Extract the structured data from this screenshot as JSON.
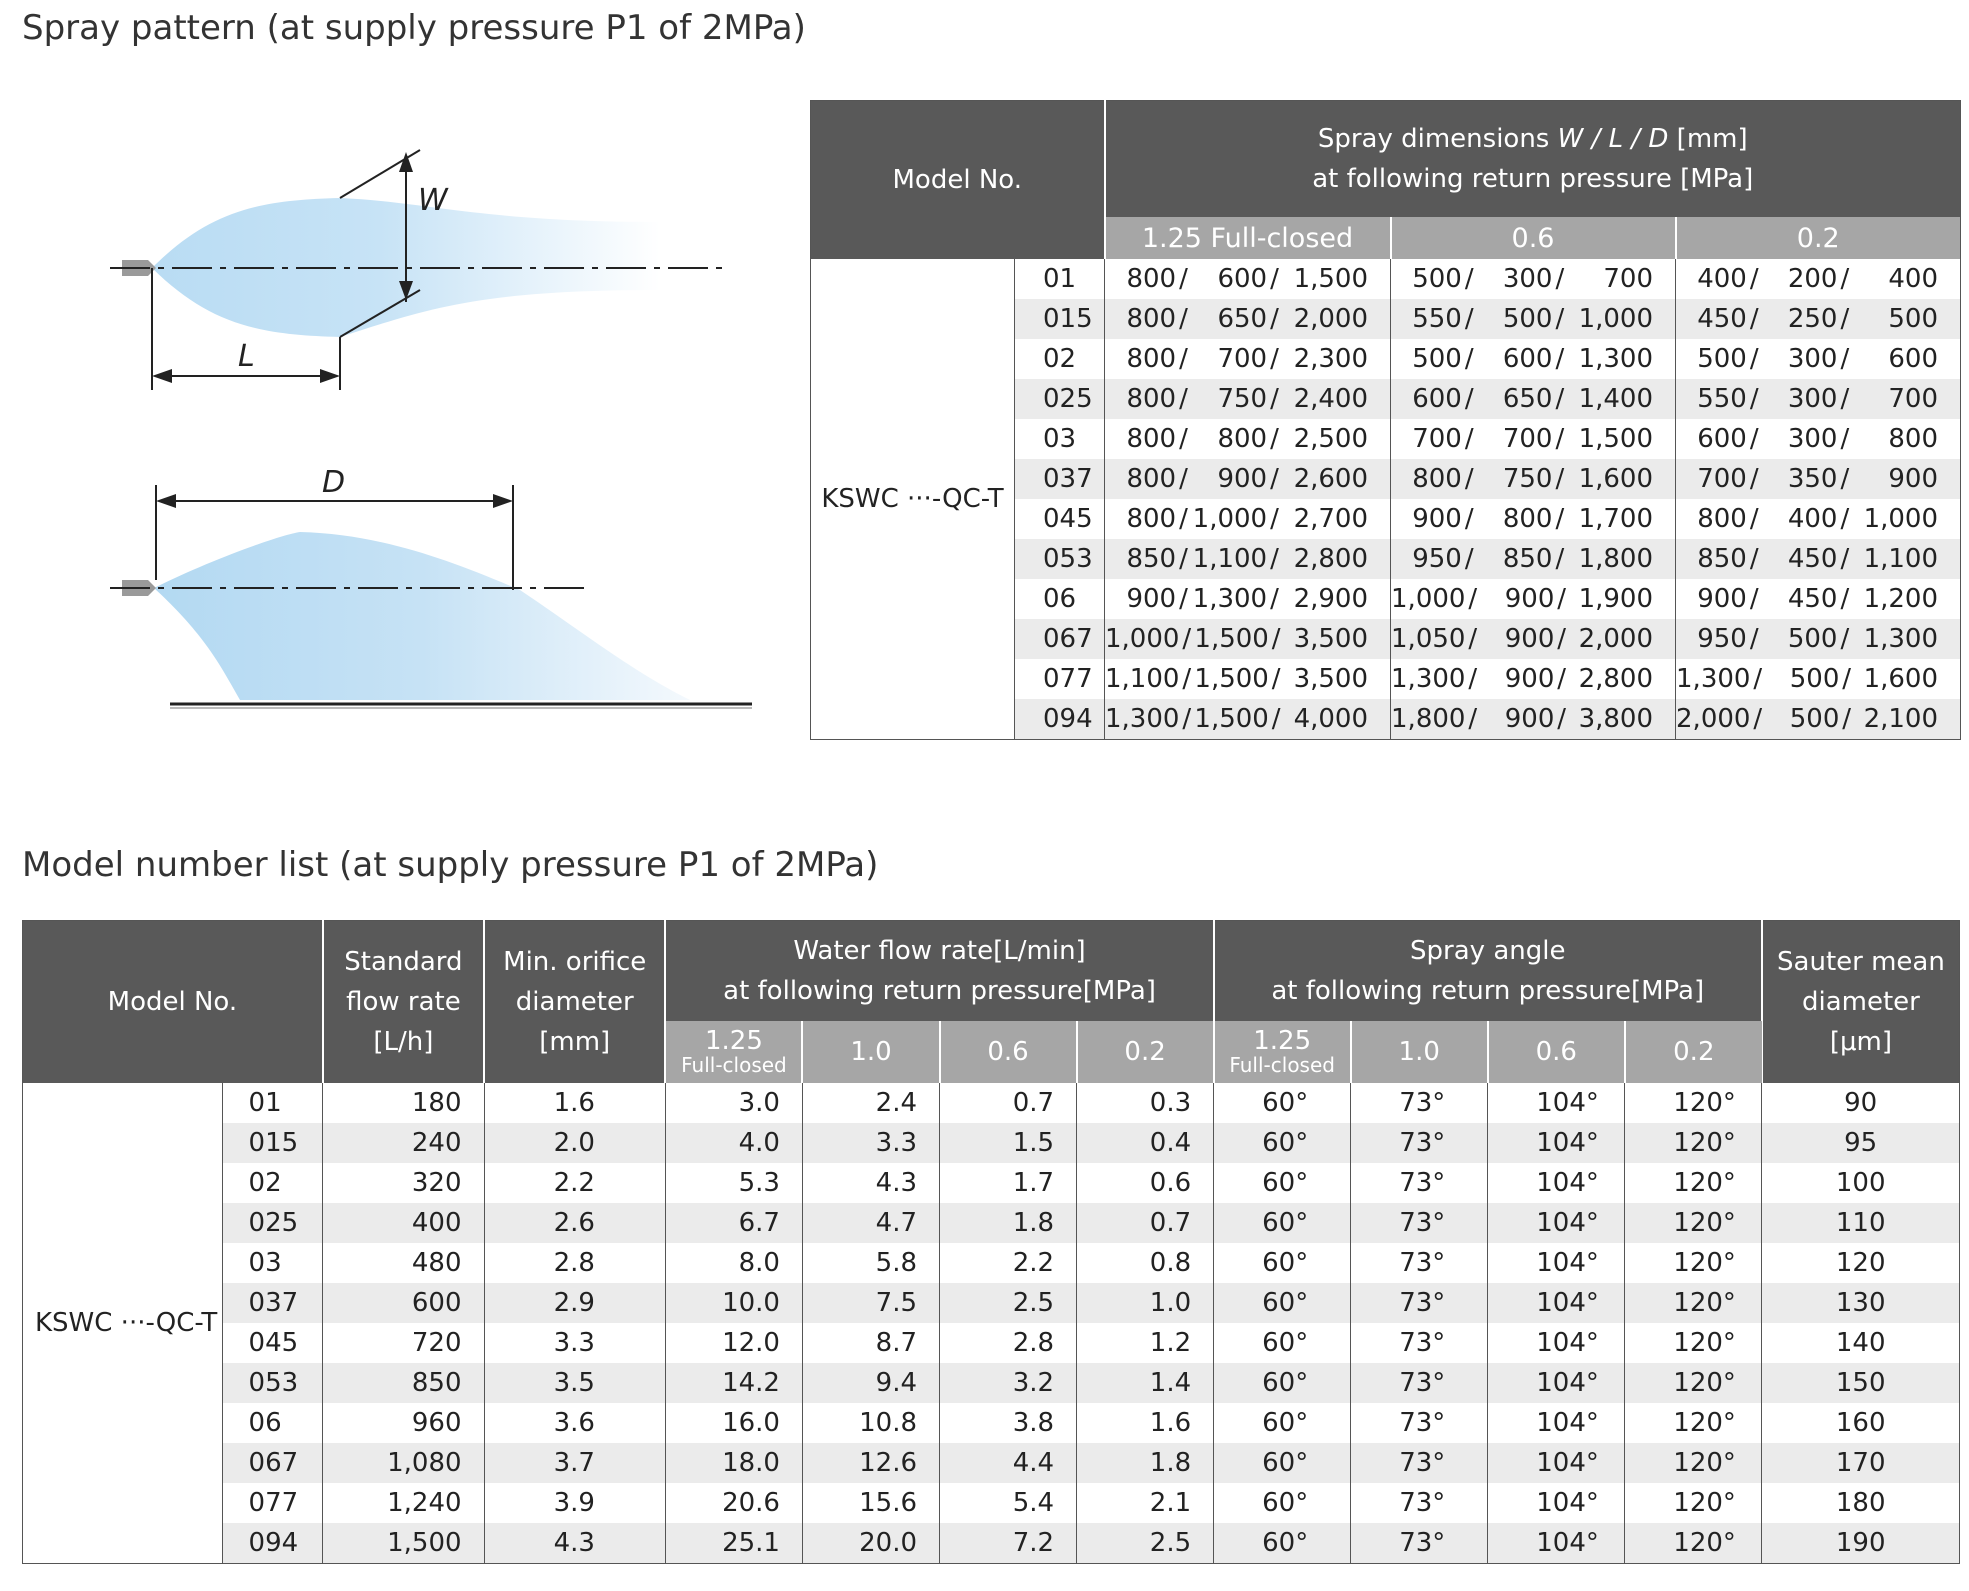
{
  "titles": {
    "spray_pattern": "Spray pattern (at supply pressure P1 of 2MPa)",
    "model_list": "Model number list (at supply pressure P1 of 2MPa)"
  },
  "diagram": {
    "label_w": "W",
    "label_l": "L",
    "label_d": "D"
  },
  "spray_table": {
    "model_header": "Model No.",
    "dims_header_line1_a": "Spray dimensions ",
    "dims_header_line1_b": "W / L / D",
    "dims_header_line1_c": " [mm]",
    "dims_header_line2": "at following return pressure [MPa]",
    "pressures": [
      "1.25 Full-closed",
      "0.6",
      "0.2"
    ],
    "model_name": "KSWC ···-QC-T",
    "rows": [
      {
        "code": "01",
        "p1": [
          "800",
          "600",
          "1,500"
        ],
        "p2": [
          "500",
          "300",
          "700"
        ],
        "p3": [
          "400",
          "200",
          "400"
        ]
      },
      {
        "code": "015",
        "p1": [
          "800",
          "650",
          "2,000"
        ],
        "p2": [
          "550",
          "500",
          "1,000"
        ],
        "p3": [
          "450",
          "250",
          "500"
        ]
      },
      {
        "code": "02",
        "p1": [
          "800",
          "700",
          "2,300"
        ],
        "p2": [
          "500",
          "600",
          "1,300"
        ],
        "p3": [
          "500",
          "300",
          "600"
        ]
      },
      {
        "code": "025",
        "p1": [
          "800",
          "750",
          "2,400"
        ],
        "p2": [
          "600",
          "650",
          "1,400"
        ],
        "p3": [
          "550",
          "300",
          "700"
        ]
      },
      {
        "code": "03",
        "p1": [
          "800",
          "800",
          "2,500"
        ],
        "p2": [
          "700",
          "700",
          "1,500"
        ],
        "p3": [
          "600",
          "300",
          "800"
        ]
      },
      {
        "code": "037",
        "p1": [
          "800",
          "900",
          "2,600"
        ],
        "p2": [
          "800",
          "750",
          "1,600"
        ],
        "p3": [
          "700",
          "350",
          "900"
        ]
      },
      {
        "code": "045",
        "p1": [
          "800",
          "1,000",
          "2,700"
        ],
        "p2": [
          "900",
          "800",
          "1,700"
        ],
        "p3": [
          "800",
          "400",
          "1,000"
        ]
      },
      {
        "code": "053",
        "p1": [
          "850",
          "1,100",
          "2,800"
        ],
        "p2": [
          "950",
          "850",
          "1,800"
        ],
        "p3": [
          "850",
          "450",
          "1,100"
        ]
      },
      {
        "code": "06",
        "p1": [
          "900",
          "1,300",
          "2,900"
        ],
        "p2": [
          "1,000",
          "900",
          "1,900"
        ],
        "p3": [
          "900",
          "450",
          "1,200"
        ]
      },
      {
        "code": "067",
        "p1": [
          "1,000",
          "1,500",
          "3,500"
        ],
        "p2": [
          "1,050",
          "900",
          "2,000"
        ],
        "p3": [
          "950",
          "500",
          "1,300"
        ]
      },
      {
        "code": "077",
        "p1": [
          "1,100",
          "1,500",
          "3,500"
        ],
        "p2": [
          "1,300",
          "900",
          "2,800"
        ],
        "p3": [
          "1,300",
          "500",
          "1,600"
        ]
      },
      {
        "code": "094",
        "p1": [
          "1,300",
          "1,500",
          "4,000"
        ],
        "p2": [
          "1,800",
          "900",
          "3,800"
        ],
        "p3": [
          "2,000",
          "500",
          "2,100"
        ]
      }
    ]
  },
  "model_table": {
    "headers": {
      "model": "Model No.",
      "flow_1": "Standard",
      "flow_2": "flow rate",
      "flow_3": "[L/h]",
      "orifice_1": "Min. orifice",
      "orifice_2": "diameter",
      "orifice_3": "[mm]",
      "water_1": "Water flow rate[L/min]",
      "water_2": "at following return pressure[MPa]",
      "angle_1": "Spray angle",
      "angle_2": "at following return pressure[MPa]",
      "smd_1": "Sauter mean",
      "smd_2": "diameter",
      "smd_3": "[μm]"
    },
    "sub_main": "1.25",
    "sub_note": "Full-closed",
    "sub_pressures": [
      "1.0",
      "0.6",
      "0.2"
    ],
    "model_name": "KSWC ···-QC-T",
    "rows": [
      {
        "code": "01",
        "flow": "180",
        "orifice": "1.6",
        "water": [
          "3.0",
          "2.4",
          "0.7",
          "0.3"
        ],
        "angle": [
          "60°",
          "73°",
          "104°",
          "120°"
        ],
        "smd": "90"
      },
      {
        "code": "015",
        "flow": "240",
        "orifice": "2.0",
        "water": [
          "4.0",
          "3.3",
          "1.5",
          "0.4"
        ],
        "angle": [
          "60°",
          "73°",
          "104°",
          "120°"
        ],
        "smd": "95"
      },
      {
        "code": "02",
        "flow": "320",
        "orifice": "2.2",
        "water": [
          "5.3",
          "4.3",
          "1.7",
          "0.6"
        ],
        "angle": [
          "60°",
          "73°",
          "104°",
          "120°"
        ],
        "smd": "100"
      },
      {
        "code": "025",
        "flow": "400",
        "orifice": "2.6",
        "water": [
          "6.7",
          "4.7",
          "1.8",
          "0.7"
        ],
        "angle": [
          "60°",
          "73°",
          "104°",
          "120°"
        ],
        "smd": "110"
      },
      {
        "code": "03",
        "flow": "480",
        "orifice": "2.8",
        "water": [
          "8.0",
          "5.8",
          "2.2",
          "0.8"
        ],
        "angle": [
          "60°",
          "73°",
          "104°",
          "120°"
        ],
        "smd": "120"
      },
      {
        "code": "037",
        "flow": "600",
        "orifice": "2.9",
        "water": [
          "10.0",
          "7.5",
          "2.5",
          "1.0"
        ],
        "angle": [
          "60°",
          "73°",
          "104°",
          "120°"
        ],
        "smd": "130"
      },
      {
        "code": "045",
        "flow": "720",
        "orifice": "3.3",
        "water": [
          "12.0",
          "8.7",
          "2.8",
          "1.2"
        ],
        "angle": [
          "60°",
          "73°",
          "104°",
          "120°"
        ],
        "smd": "140"
      },
      {
        "code": "053",
        "flow": "850",
        "orifice": "3.5",
        "water": [
          "14.2",
          "9.4",
          "3.2",
          "1.4"
        ],
        "angle": [
          "60°",
          "73°",
          "104°",
          "120°"
        ],
        "smd": "150"
      },
      {
        "code": "06",
        "flow": "960",
        "orifice": "3.6",
        "water": [
          "16.0",
          "10.8",
          "3.8",
          "1.6"
        ],
        "angle": [
          "60°",
          "73°",
          "104°",
          "120°"
        ],
        "smd": "160"
      },
      {
        "code": "067",
        "flow": "1,080",
        "orifice": "3.7",
        "water": [
          "18.0",
          "12.6",
          "4.4",
          "1.8"
        ],
        "angle": [
          "60°",
          "73°",
          "104°",
          "120°"
        ],
        "smd": "170"
      },
      {
        "code": "077",
        "flow": "1,240",
        "orifice": "3.9",
        "water": [
          "20.6",
          "15.6",
          "5.4",
          "2.1"
        ],
        "angle": [
          "60°",
          "73°",
          "104°",
          "120°"
        ],
        "smd": "180"
      },
      {
        "code": "094",
        "flow": "1,500",
        "orifice": "4.3",
        "water": [
          "25.1",
          "20.0",
          "7.2",
          "2.5"
        ],
        "angle": [
          "60°",
          "73°",
          "104°",
          "120°"
        ],
        "smd": "190"
      }
    ]
  }
}
